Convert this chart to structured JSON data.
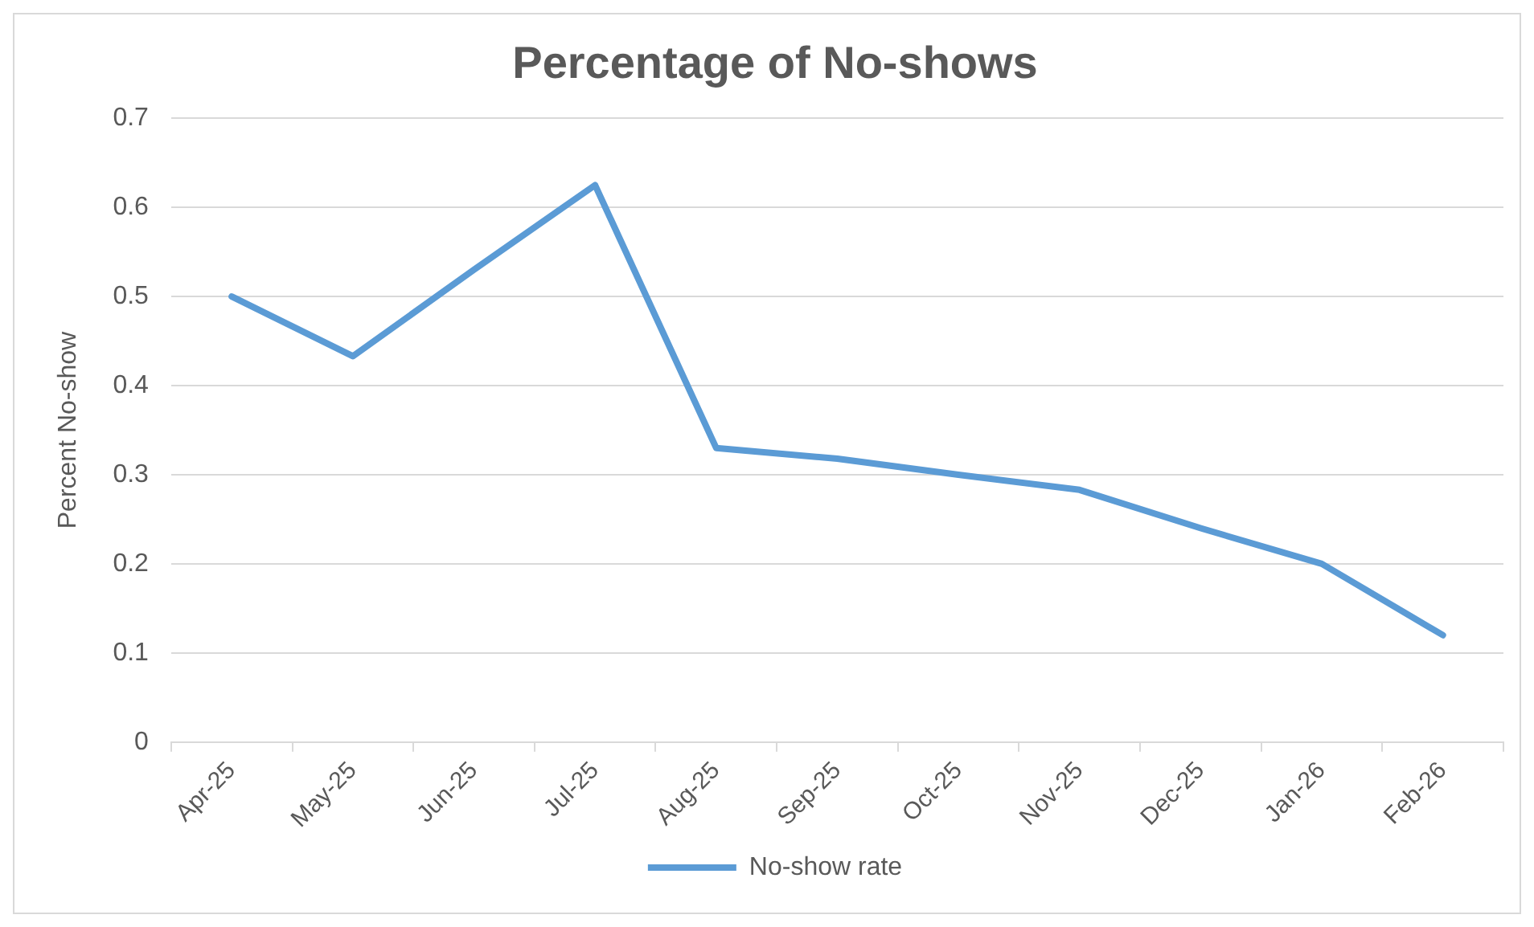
{
  "chart_data": {
    "type": "line",
    "title": "Percentage of No-shows",
    "ylabel": "Percent No-show",
    "categories": [
      "Apr-25",
      "May-25",
      "Jun-25",
      "Jul-25",
      "Aug-25",
      "Sep-25",
      "Oct-25",
      "Nov-25",
      "Dec-25",
      "Jan-26",
      "Feb-26"
    ],
    "series": [
      {
        "name": "No-show rate",
        "color": "#5b9bd5",
        "values": [
          0.5,
          0.433,
          0.53,
          0.625,
          0.33,
          0.318,
          0.3,
          0.283,
          0.24,
          0.2,
          0.12
        ]
      }
    ],
    "ylim": [
      0,
      0.7
    ],
    "yticks": [
      0,
      0.1,
      0.2,
      0.3,
      0.4,
      0.5,
      0.6,
      0.7
    ],
    "grid": "y",
    "legend": "bottom",
    "marker": "none",
    "line_style": "solid"
  }
}
